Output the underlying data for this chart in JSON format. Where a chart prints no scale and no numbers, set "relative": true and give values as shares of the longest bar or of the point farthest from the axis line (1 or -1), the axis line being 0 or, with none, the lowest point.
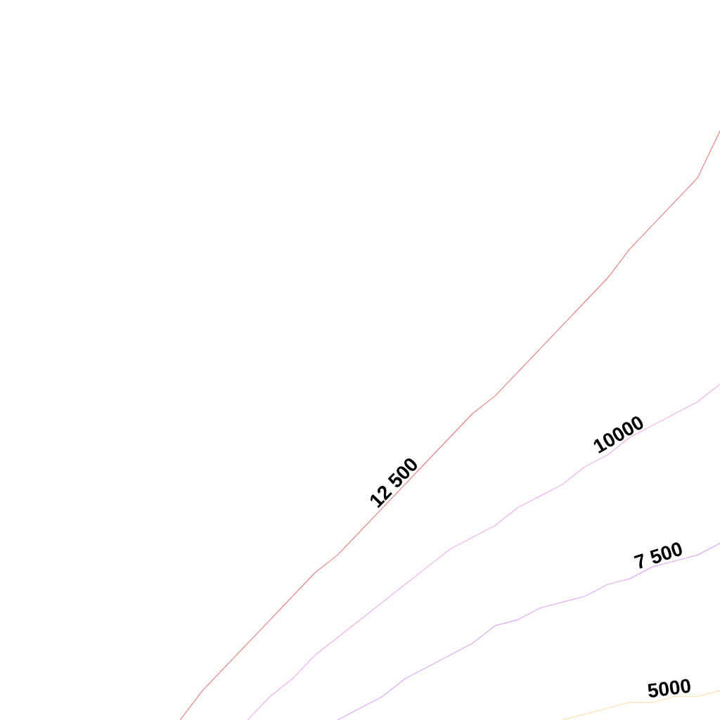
{
  "chart_data": {
    "type": "line",
    "relative": true,
    "marker": "none",
    "categories": [
      null,
      null,
      null,
      null,
      null,
      null,
      null,
      null,
      null,
      null,
      null,
      null,
      null,
      null,
      null,
      null,
      null,
      null,
      null,
      null,
      null,
      null,
      null,
      null,
      null,
      null,
      null,
      null,
      null,
      null,
      null,
      null,
      null
    ],
    "series": [
      {
        "name": "12 500",
        "color": "#f08080",
        "values": [
          null,
          null,
          null,
          null,
          null,
          null,
          null,
          null,
          0,
          0.05,
          0.09,
          0.13,
          0.17,
          0.21,
          0.25,
          0.28,
          0.32,
          0.36,
          0.4,
          0.44,
          0.48,
          0.52,
          0.55,
          0.59,
          0.63,
          0.67,
          0.71,
          0.75,
          0.8,
          0.84,
          0.88,
          0.92,
          1
        ]
      },
      {
        "name": "10000",
        "color": "#f0b0f0",
        "values": [
          null,
          null,
          null,
          null,
          null,
          null,
          null,
          null,
          null,
          null,
          null,
          0,
          0.04,
          0.07,
          0.11,
          0.14,
          0.17,
          0.2,
          0.23,
          0.26,
          0.29,
          0.31,
          0.33,
          0.36,
          0.38,
          0.4,
          0.43,
          0.45,
          0.48,
          0.5,
          0.52,
          0.54,
          0.57
        ]
      },
      {
        "name": "7 500",
        "color": "#e0a8f8",
        "values": [
          null,
          null,
          null,
          null,
          null,
          null,
          null,
          null,
          null,
          null,
          null,
          null,
          null,
          null,
          null,
          0,
          0.02,
          0.04,
          0.07,
          0.09,
          0.11,
          0.13,
          0.16,
          0.17,
          0.19,
          0.2,
          0.21,
          0.23,
          0.24,
          0.26,
          0.27,
          0.28,
          0.3
        ]
      },
      {
        "name": "5000",
        "color": "#ffe0b0",
        "values": [
          null,
          null,
          null,
          null,
          null,
          null,
          null,
          null,
          null,
          null,
          null,
          null,
          null,
          null,
          null,
          null,
          null,
          null,
          null,
          null,
          null,
          null,
          null,
          null,
          null,
          0,
          0.01,
          0.02,
          0.03,
          0.03,
          0.04,
          0.04,
          0.05
        ]
      }
    ]
  }
}
